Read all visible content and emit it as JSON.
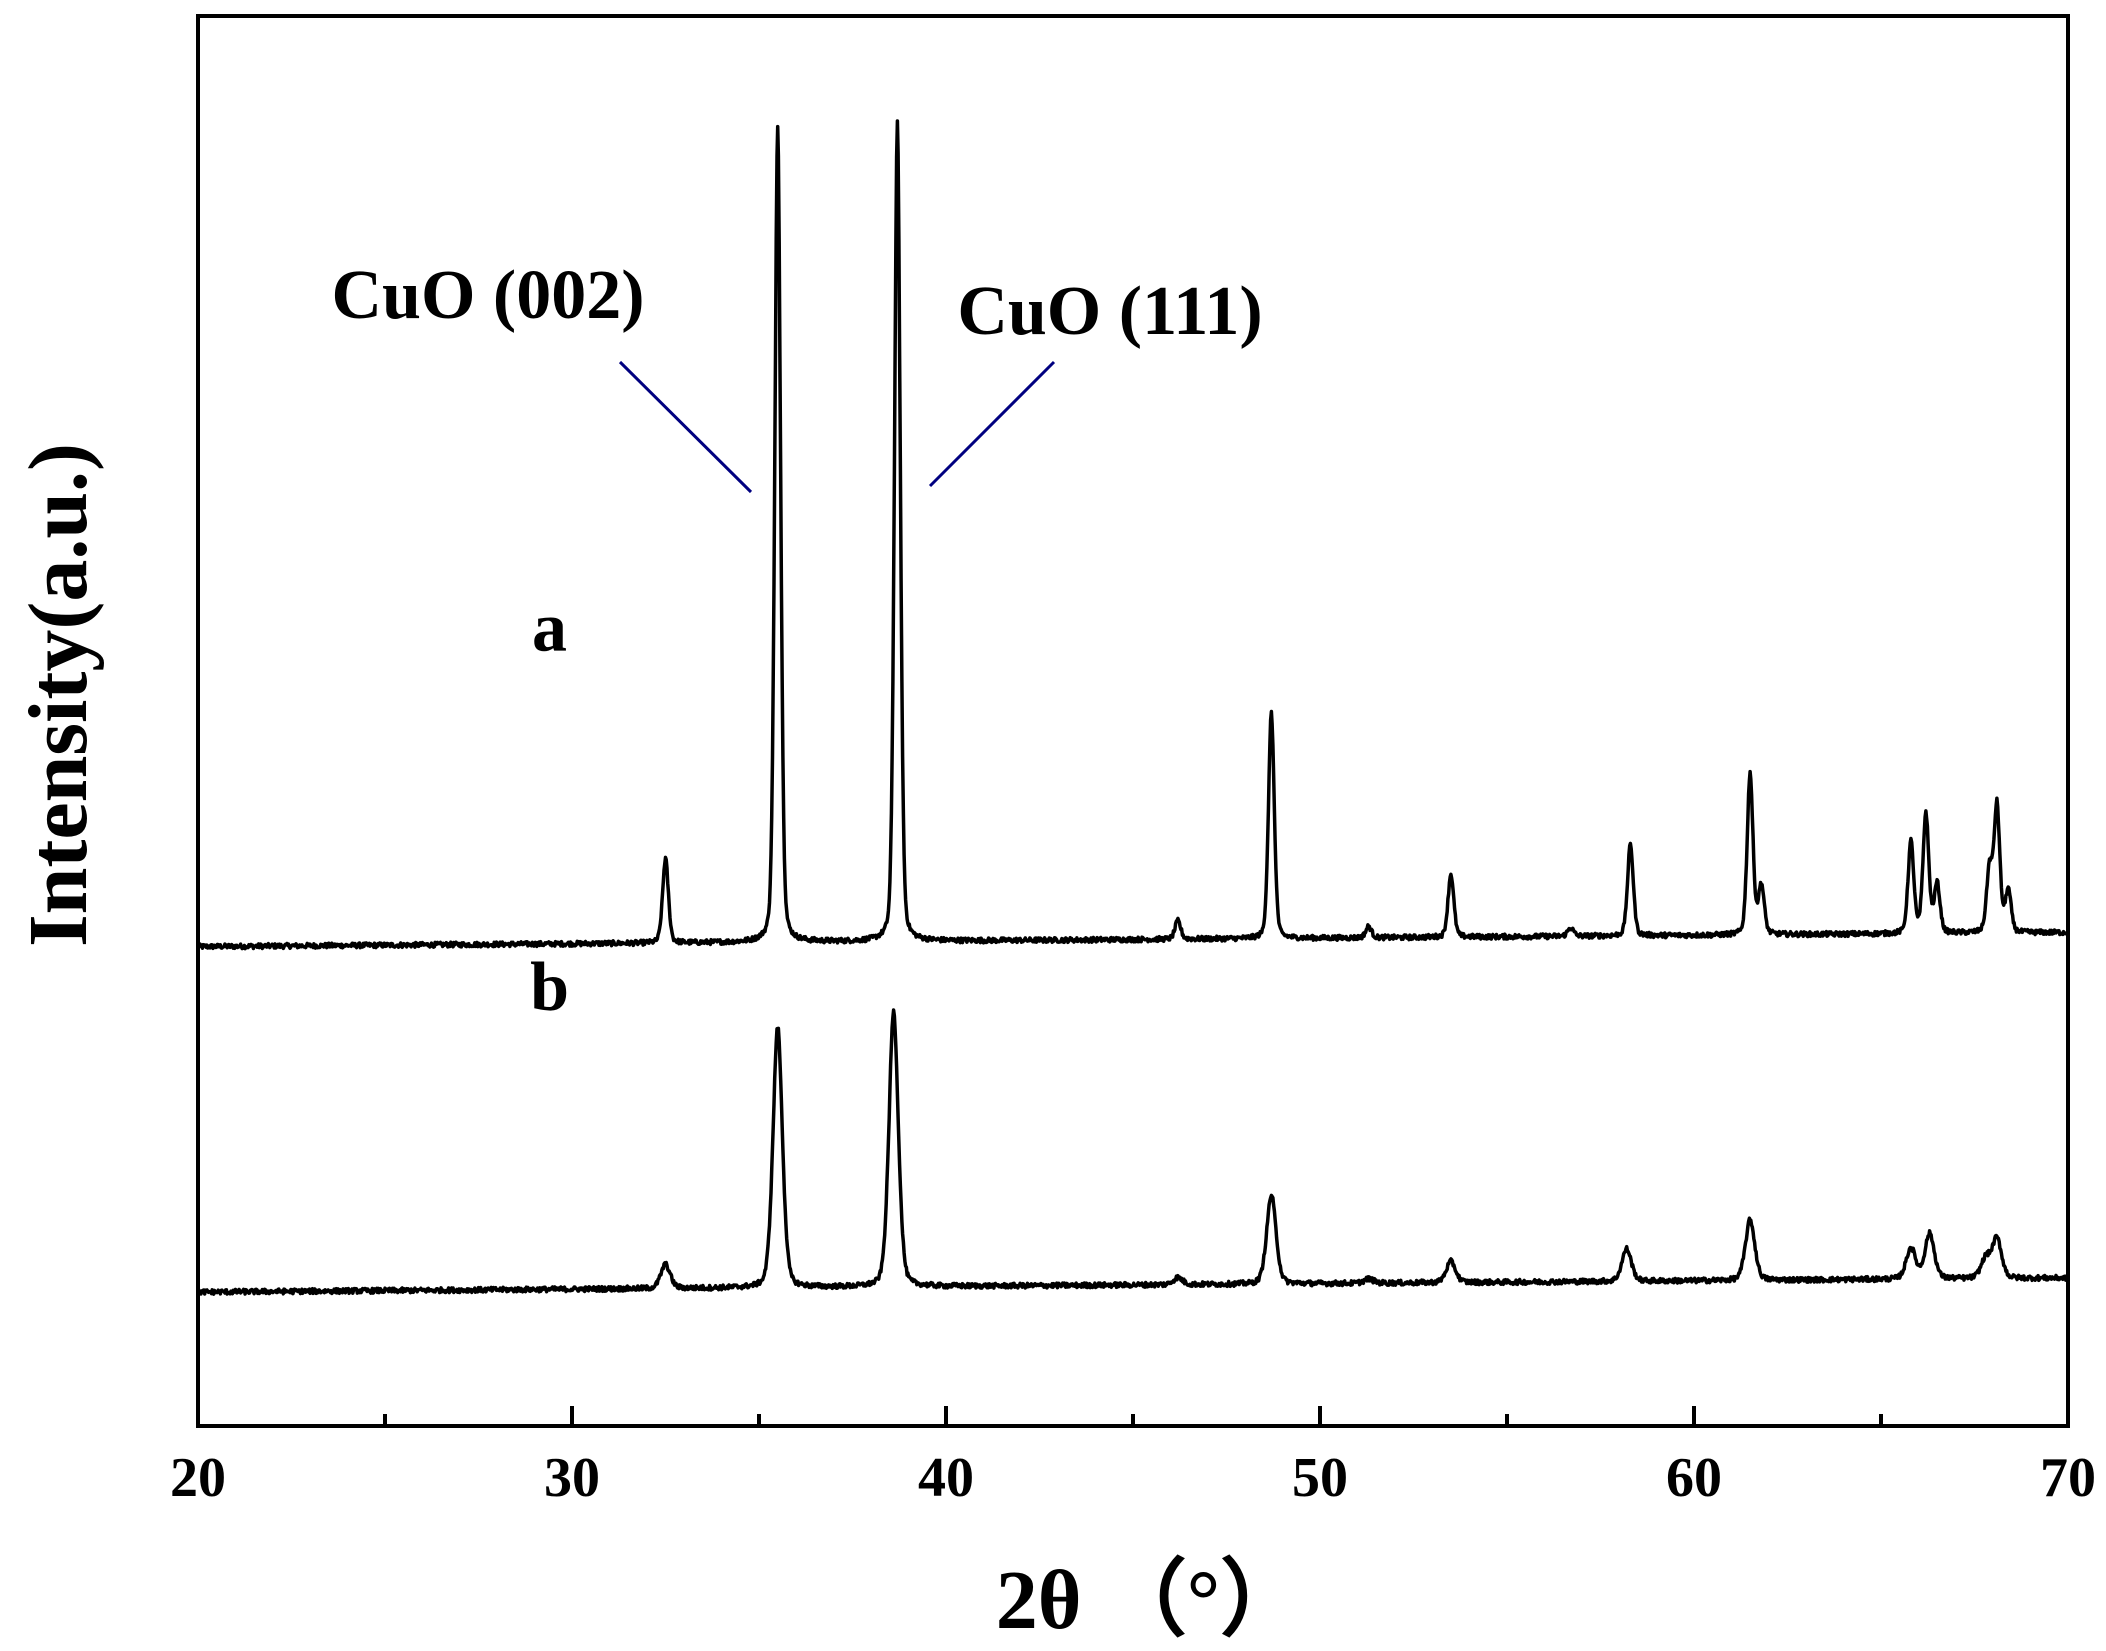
{
  "chart_data": {
    "type": "line",
    "xlabel": "2θ （°）",
    "ylabel": "Intensity(a.u.)",
    "xlim": [
      20,
      70
    ],
    "ylim": [
      0,
      100
    ],
    "x_ticks": [
      "20",
      "30",
      "40",
      "50",
      "60",
      "70"
    ],
    "y_ticks_shown": false,
    "grid": false,
    "legend": "none",
    "annotations": [
      {
        "text": "CuO (002)",
        "x": 35.5
      },
      {
        "text": "CuO (111)",
        "x": 38.7
      }
    ],
    "series": [
      {
        "name": "a",
        "baseline": 34,
        "baseline_end": 35,
        "peaks": [
          {
            "x": 32.5,
            "height": 6
          },
          {
            "x": 35.5,
            "height": 58
          },
          {
            "x": 38.7,
            "height": 58
          },
          {
            "x": 46.2,
            "height": 1.3
          },
          {
            "x": 48.7,
            "height": 16
          },
          {
            "x": 51.3,
            "height": 0.8
          },
          {
            "x": 53.5,
            "height": 4.5
          },
          {
            "x": 56.7,
            "height": 0.6
          },
          {
            "x": 58.3,
            "height": 6.5
          },
          {
            "x": 61.5,
            "height": 11.5
          },
          {
            "x": 61.8,
            "height": 3.5
          },
          {
            "x": 65.8,
            "height": 6.5
          },
          {
            "x": 66.2,
            "height": 8.5
          },
          {
            "x": 66.5,
            "height": 3.5
          },
          {
            "x": 67.9,
            "height": 4.5
          },
          {
            "x": 68.1,
            "height": 9
          },
          {
            "x": 68.4,
            "height": 3
          }
        ]
      },
      {
        "name": "b",
        "baseline": 9.5,
        "baseline_end": 10.5,
        "peaks": [
          {
            "x": 32.5,
            "height": 1.7
          },
          {
            "x": 35.5,
            "height": 18.5
          },
          {
            "x": 38.6,
            "height": 19.5
          },
          {
            "x": 46.2,
            "height": 0.5
          },
          {
            "x": 48.7,
            "height": 6.3
          },
          {
            "x": 51.3,
            "height": 0.3
          },
          {
            "x": 53.5,
            "height": 1.5
          },
          {
            "x": 58.2,
            "height": 2.3
          },
          {
            "x": 61.5,
            "height": 4.3
          },
          {
            "x": 65.8,
            "height": 2.2
          },
          {
            "x": 66.3,
            "height": 3.2
          },
          {
            "x": 67.8,
            "height": 1.4
          },
          {
            "x": 68.1,
            "height": 2.8
          }
        ]
      }
    ]
  }
}
